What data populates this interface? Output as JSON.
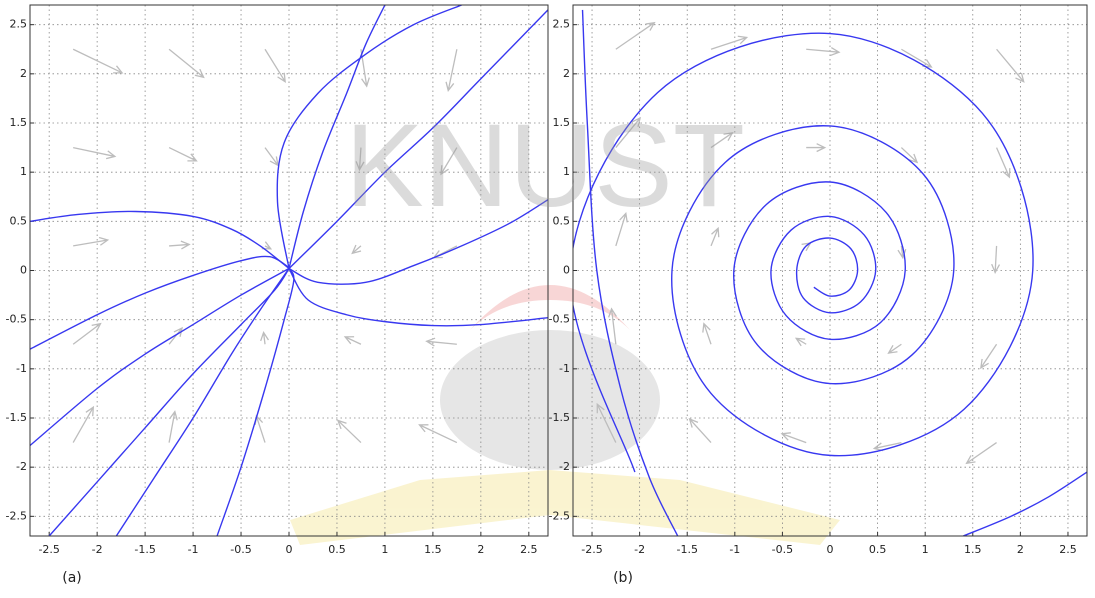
{
  "watermark": "KNUST",
  "chart_data": [
    {
      "type": "phase-portrait",
      "label": "(a)",
      "xlim": [
        -2.7,
        2.7
      ],
      "ylim": [
        -2.7,
        2.7
      ],
      "xticks": [
        -2.5,
        -2,
        -1.5,
        -1,
        -0.5,
        0,
        0.5,
        1,
        1.5,
        2,
        2.5
      ],
      "yticks": [
        -2.5,
        -2,
        -1.5,
        -1,
        -0.5,
        0,
        0.5,
        1,
        1.5,
        2,
        2.5
      ],
      "grid": true,
      "arrow_color": "#bdbdbd",
      "quiver": {
        "x": [
          -2.25,
          -1.25,
          -0.25,
          0.75,
          1.75
        ],
        "y": [
          2.25,
          1.25,
          0.25,
          -0.75,
          -1.75
        ],
        "u": [
          [
            3.4,
            2.4,
            1.4,
            0.4,
            -0.6
          ],
          [
            2.9,
            1.9,
            0.9,
            -0.1,
            -1.1
          ],
          [
            2.4,
            1.4,
            0.4,
            -0.6,
            -1.6
          ],
          [
            1.9,
            0.9,
            -0.1,
            -1.1,
            -2.1
          ],
          [
            1.4,
            0.4,
            -0.6,
            -1.6,
            -2.6
          ]
        ],
        "v": [
          [
            -1.6,
            -1.9,
            -2.2,
            -2.5,
            -2.8
          ],
          [
            -0.6,
            -0.9,
            -1.2,
            -1.5,
            -1.8
          ],
          [
            0.4,
            0.1,
            -0.2,
            -0.5,
            -0.8
          ],
          [
            1.4,
            1.1,
            0.8,
            0.5,
            0.2
          ],
          [
            2.4,
            2.1,
            1.8,
            1.5,
            1.2
          ]
        ]
      },
      "series": [
        {
          "color": "#3838f0",
          "x": [
            -2.7,
            -2.2,
            -1.6,
            -1.0,
            -0.6,
            -0.3,
            0
          ],
          "y": [
            0.5,
            0.57,
            0.6,
            0.55,
            0.42,
            0.25,
            0.02
          ]
        },
        {
          "color": "#3838f0",
          "x": [
            -2.7,
            -2,
            -1.5,
            -1,
            -0.5,
            -0.2,
            0
          ],
          "y": [
            -0.8,
            -0.45,
            -0.23,
            -0.05,
            0.1,
            0.14,
            0.03
          ]
        },
        {
          "color": "#3838f0",
          "x": [
            -2.7,
            -2,
            -1.5,
            -1,
            -0.5,
            0
          ],
          "y": [
            -1.78,
            -1.2,
            -0.85,
            -0.55,
            -0.25,
            0.02
          ]
        },
        {
          "color": "#3838f0",
          "x": [
            -2.5,
            -2,
            -1.5,
            -1,
            -0.5,
            -0.15,
            0
          ],
          "y": [
            -2.7,
            -2.15,
            -1.6,
            -1.05,
            -0.55,
            -0.2,
            0.02
          ]
        },
        {
          "color": "#3838f0",
          "x": [
            -1.8,
            -1.4,
            -1,
            -0.6,
            -0.3,
            0
          ],
          "y": [
            -2.7,
            -2.1,
            -1.5,
            -0.85,
            -0.4,
            0.02
          ]
        },
        {
          "color": "#3838f0",
          "x": [
            -0.75,
            -0.5,
            -0.25,
            -0.05,
            0.05,
            0
          ],
          "y": [
            -2.7,
            -2,
            -1.2,
            -0.5,
            -0.1,
            0.02
          ]
        },
        {
          "color": "#3838f0",
          "x": [
            0,
            -0.12,
            -0.05,
            0.3,
            0.8,
            1.3,
            1.8
          ],
          "y": [
            0.02,
            0.7,
            1.3,
            1.8,
            2.2,
            2.5,
            2.7
          ]
        },
        {
          "color": "#3838f0",
          "x": [
            0,
            0.15,
            0.35,
            0.6,
            0.8,
            1.0
          ],
          "y": [
            0.02,
            0.6,
            1.2,
            1.8,
            2.3,
            2.7
          ]
        },
        {
          "color": "#3838f0",
          "x": [
            0,
            0.5,
            1,
            1.5,
            2,
            2.7
          ],
          "y": [
            0.02,
            0.5,
            1.0,
            1.45,
            1.95,
            2.65
          ]
        },
        {
          "color": "#3838f0",
          "x": [
            0,
            0.3,
            0.8,
            1.3,
            1.8,
            2.3,
            2.7
          ],
          "y": [
            0.02,
            -0.12,
            -0.12,
            0.05,
            0.25,
            0.48,
            0.72
          ]
        },
        {
          "color": "#3838f0",
          "x": [
            0,
            0.2,
            0.6,
            1.0,
            1.5,
            2.0,
            2.7
          ],
          "y": [
            0.02,
            -0.3,
            -0.45,
            -0.52,
            -0.56,
            -0.55,
            -0.48
          ]
        }
      ]
    },
    {
      "type": "phase-portrait",
      "label": "(b)",
      "xlim": [
        -2.7,
        2.7
      ],
      "ylim": [
        -2.7,
        2.7
      ],
      "xticks": [
        -2.5,
        -2,
        -1.5,
        -1,
        -0.5,
        0,
        0.5,
        1,
        1.5,
        2,
        2.5
      ],
      "yticks": [
        -2.5,
        -2,
        -1.5,
        -1,
        -0.5,
        0,
        0.5,
        1,
        1.5,
        2,
        2.5
      ],
      "grid": true,
      "arrow_color": "#bdbdbd",
      "quiver": {
        "x": [
          -2.25,
          -1.25,
          -0.25,
          0.75,
          1.75
        ],
        "y": [
          2.25,
          1.25,
          0.25,
          -0.75,
          -1.75
        ],
        "u": [
          [
            2.7,
            2.5,
            2.3,
            2.1,
            1.9
          ],
          [
            1.7,
            1.5,
            1.3,
            1.1,
            0.9
          ],
          [
            0.7,
            0.5,
            0.3,
            0.1,
            -0.1
          ],
          [
            -0.3,
            -0.5,
            -0.7,
            -0.9,
            -1.1
          ],
          [
            -1.3,
            -1.5,
            -1.7,
            -1.9,
            -2.1
          ]
        ],
        "v": [
          [
            1.8,
            0.8,
            -0.2,
            -1.2,
            -2.2
          ],
          [
            2.0,
            1.0,
            0.0,
            -1.0,
            -2.0
          ],
          [
            2.2,
            1.2,
            0.2,
            -0.8,
            -1.8
          ],
          [
            2.4,
            1.4,
            0.4,
            -0.6,
            -1.6
          ],
          [
            2.6,
            1.6,
            0.6,
            -0.4,
            -1.4
          ]
        ]
      },
      "series": [
        {
          "color": "#3838f0",
          "x": [
            -2.05,
            -2.73,
            -1.81,
            0,
            1.6,
            2.13,
            1.41,
            0,
            -1.25,
            -1.66,
            -1.1,
            0,
            0.98,
            1.3,
            0.86,
            0,
            -0.76,
            -1.01,
            -0.67,
            0,
            0.59,
            0.79,
            0.53,
            0,
            -0.46,
            -0.62,
            -0.41,
            0,
            0.36,
            0.48,
            0.32,
            0,
            -0.28,
            -0.35,
            -0.25,
            0,
            0.22,
            0.29,
            0.2,
            0,
            -0.17
          ],
          "y": [
            -2.05,
            0,
            1.81,
            2.41,
            1.6,
            0,
            -1.41,
            -1.88,
            -1.25,
            0,
            1.1,
            1.47,
            0.98,
            0,
            -0.86,
            -1.15,
            -0.76,
            0,
            0.67,
            0.9,
            0.59,
            0,
            -0.53,
            -0.7,
            -0.46,
            0,
            0.41,
            0.55,
            0.36,
            0,
            -0.32,
            -0.43,
            -0.28,
            0,
            0.25,
            0.33,
            0.22,
            0,
            -0.2,
            -0.26,
            -0.17
          ]
        },
        {
          "color": "#3838f0",
          "x": [
            -2.6,
            -2.55,
            -2.45,
            -2.2,
            -1.9,
            -1.6
          ],
          "y": [
            2.65,
            1.5,
            0,
            -1.2,
            -2.1,
            -2.7
          ]
        },
        {
          "color": "#3838f0",
          "x": [
            1.4,
            1.9,
            2.3,
            2.7
          ],
          "y": [
            -2.7,
            -2.5,
            -2.3,
            -2.05
          ]
        }
      ]
    }
  ]
}
